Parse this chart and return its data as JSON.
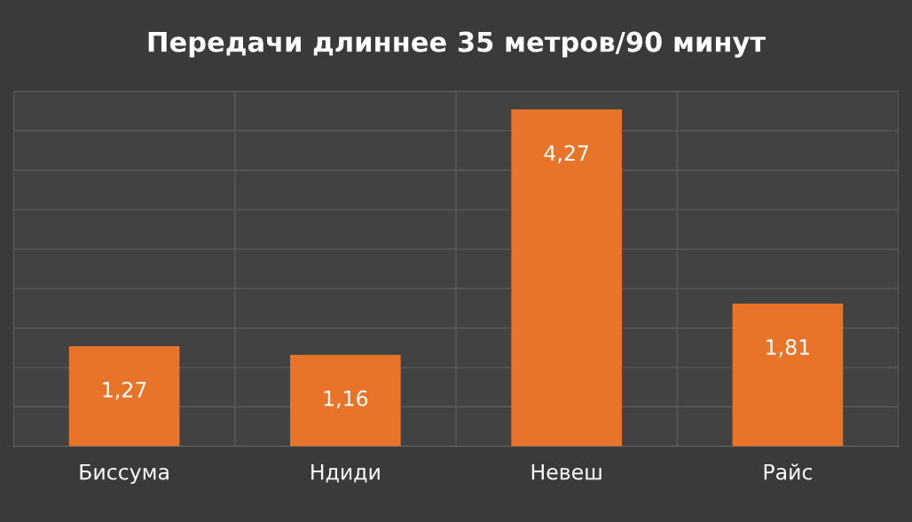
{
  "chart_data": {
    "type": "bar",
    "title": "Передачи длиннее 35 метров/90 минут",
    "categories": [
      "Биссума",
      "Ндиди",
      "Невеш",
      "Райс"
    ],
    "values": [
      1.27,
      1.16,
      4.27,
      1.81
    ],
    "value_labels": [
      "1,27",
      "1,16",
      "4,27",
      "1,81"
    ],
    "color": "#e8742a",
    "ylim": [
      0,
      4.5
    ],
    "yticks": [
      {
        "value": 0,
        "label": null
      },
      {
        "value": 0.5,
        "label": null
      },
      {
        "value": 1,
        "label": null
      },
      {
        "value": 1.5,
        "label": null
      },
      {
        "value": 2,
        "label": null
      },
      {
        "value": 2.5,
        "label": null
      },
      {
        "value": 3,
        "label": null
      },
      {
        "value": 3.5,
        "label": null
      },
      {
        "value": 4,
        "label": null
      },
      {
        "value": 4.5,
        "label": null
      }
    ],
    "tick_labels": "x",
    "grid": "y"
  }
}
